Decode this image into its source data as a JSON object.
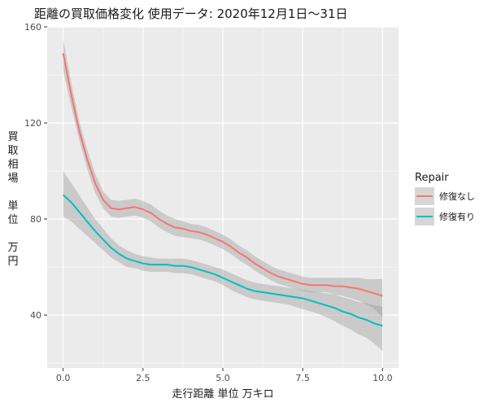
{
  "chart_data": {
    "type": "line",
    "title": "距離の買取価格変化 使用データ: 2020年12月1日～31日",
    "xlabel": "走行距離 単位 万キロ",
    "ylabel_lines": [
      "買",
      "取",
      "相",
      "場",
      "",
      "単",
      "位",
      "",
      "万",
      "円"
    ],
    "xlim": [
      -0.5,
      10.5
    ],
    "ylim": [
      18,
      160
    ],
    "x_ticks": [
      0,
      2.5,
      5,
      7.5,
      10
    ],
    "x_tick_labels": [
      "0.0",
      "2.5",
      "5.0",
      "7.5",
      "10.0"
    ],
    "y_ticks": [
      40,
      80,
      120,
      160
    ],
    "y_tick_labels": [
      "40",
      "80",
      "120",
      "160"
    ],
    "grid": true,
    "legend": {
      "title": "Repair",
      "position": "right"
    },
    "series": [
      {
        "name": "修復なし",
        "color": "#F8766D",
        "x": [
          0.0,
          0.25,
          0.5,
          0.75,
          1.0,
          1.25,
          1.5,
          1.75,
          2.0,
          2.25,
          2.5,
          2.75,
          3.0,
          3.25,
          3.5,
          3.75,
          4.0,
          4.25,
          4.5,
          4.75,
          5.0,
          5.25,
          5.5,
          5.75,
          6.0,
          6.25,
          6.5,
          6.75,
          7.0,
          7.25,
          7.5,
          7.75,
          8.0,
          8.25,
          8.5,
          8.75,
          9.0,
          9.25,
          9.5,
          9.75,
          10.0
        ],
        "y": [
          149,
          132,
          117,
          105,
          95,
          88,
          84.5,
          84,
          84.5,
          85,
          84,
          82.5,
          80,
          78,
          76.5,
          76,
          75,
          74.5,
          73.5,
          72,
          70.5,
          68.5,
          66,
          64,
          61.5,
          59.5,
          57.5,
          56,
          55,
          54,
          53,
          52.5,
          52.5,
          52.5,
          52,
          52,
          51.5,
          51,
          50,
          49,
          48
        ],
        "upper": [
          155,
          137,
          121,
          109,
          99,
          91.5,
          88,
          87.5,
          88,
          88.5,
          87.5,
          86,
          83.5,
          81.5,
          80,
          79,
          78,
          77.5,
          76.5,
          75,
          73.5,
          71.5,
          69,
          67,
          64.5,
          62.5,
          60.5,
          59,
          58,
          57,
          56,
          55.5,
          55.5,
          55.5,
          55.5,
          55.5,
          55.5,
          55.5,
          55,
          55,
          55
        ],
        "lower": [
          142,
          127,
          113,
          101,
          91,
          84.5,
          81,
          80.5,
          81,
          81.5,
          80.5,
          79,
          76.5,
          74.5,
          73,
          72.5,
          72,
          71.5,
          70.5,
          69,
          67.5,
          65.5,
          63,
          61,
          58.5,
          56.5,
          54.5,
          53,
          52,
          51,
          50,
          49.5,
          49.5,
          49.5,
          48.5,
          48,
          47,
          46,
          44.5,
          42.5,
          39
        ]
      },
      {
        "name": "修復有り",
        "color": "#00BFC4",
        "x": [
          0.0,
          0.25,
          0.5,
          0.75,
          1.0,
          1.25,
          1.5,
          1.75,
          2.0,
          2.25,
          2.5,
          2.75,
          3.0,
          3.25,
          3.5,
          3.75,
          4.0,
          4.25,
          4.5,
          4.75,
          5.0,
          5.25,
          5.5,
          5.75,
          6.0,
          6.25,
          6.5,
          6.75,
          7.0,
          7.25,
          7.5,
          7.75,
          8.0,
          8.25,
          8.5,
          8.75,
          9.0,
          9.25,
          9.5,
          9.75,
          10.0
        ],
        "y": [
          90,
          87,
          83,
          79,
          75,
          71.5,
          68,
          65.5,
          63.5,
          62.5,
          61.5,
          61,
          61,
          61,
          60.5,
          60.5,
          60,
          59,
          58,
          57,
          55.5,
          54,
          52.5,
          51,
          50,
          49.5,
          49,
          48.5,
          48,
          47.5,
          47,
          46,
          45,
          44,
          43,
          41.5,
          40.5,
          39,
          38,
          36.5,
          35.5
        ],
        "upper": [
          100,
          95,
          90,
          85,
          80,
          76,
          72,
          69,
          67,
          65.5,
          64.5,
          64,
          63.5,
          63.5,
          63.5,
          63.5,
          63,
          62,
          61,
          60,
          59,
          57.5,
          56,
          54.5,
          53.5,
          53,
          52.5,
          52,
          51.5,
          51,
          50.5,
          50,
          49.5,
          49,
          48.5,
          47.5,
          46.5,
          45.5,
          45,
          44,
          43.5
        ],
        "lower": [
          81,
          79,
          76,
          73,
          70,
          67,
          64,
          62,
          60,
          59.5,
          58.5,
          58,
          58,
          58,
          57.5,
          57.5,
          57,
          56,
          55,
          54,
          52.5,
          50.5,
          49,
          47.5,
          46.5,
          46,
          45.5,
          45,
          44.5,
          43.5,
          42.5,
          41.5,
          40.5,
          39,
          37.5,
          35.5,
          34,
          32,
          30.5,
          28,
          25
        ]
      }
    ]
  }
}
